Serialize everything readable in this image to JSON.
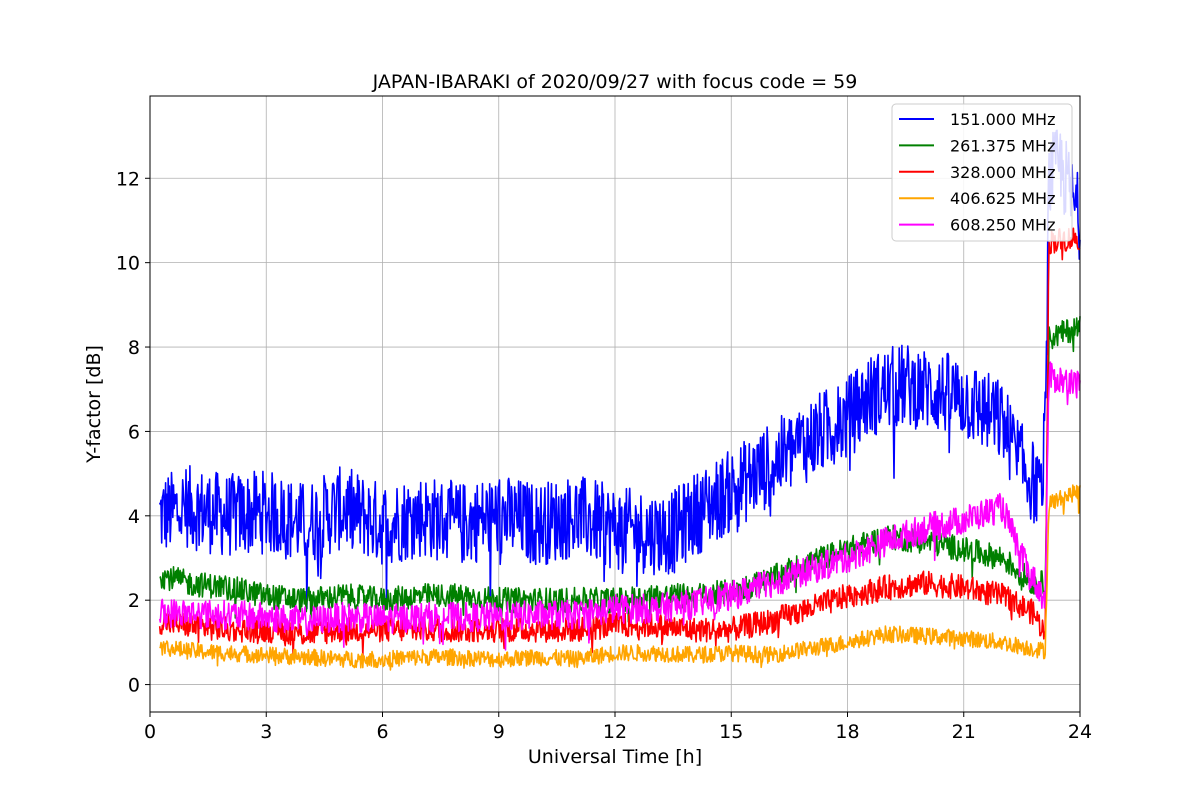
{
  "chart_data": {
    "type": "line",
    "title": "JAPAN-IBARAKI of 2020/09/27 with focus code = 59",
    "xlabel": "Universal Time [h]",
    "ylabel": "Y-factor [dB]",
    "xlim": [
      0,
      24
    ],
    "ylim": [
      -0.65,
      13.95
    ],
    "xticks": [
      0,
      3,
      6,
      9,
      12,
      15,
      18,
      21,
      24
    ],
    "yticks": [
      0,
      2,
      4,
      6,
      8,
      10,
      12
    ],
    "grid": true,
    "legend_position": "top-right",
    "series": [
      {
        "name": "151.000 MHz",
        "color": "#0000ff",
        "noise": 1.0,
        "x": [
          0.25,
          1,
          2,
          3,
          4,
          5,
          6,
          7,
          8,
          9,
          10,
          11,
          12,
          13,
          13.5,
          14,
          15,
          16,
          17,
          18,
          18.5,
          19,
          19.5,
          20,
          21,
          22,
          22.5,
          23,
          23.1,
          23.2,
          23.5,
          24
        ],
        "values": [
          4.0,
          4.2,
          4.0,
          4.1,
          3.8,
          4.2,
          3.8,
          4.0,
          3.8,
          4.0,
          3.8,
          4.0,
          3.7,
          3.6,
          3.6,
          4.0,
          4.6,
          5.2,
          5.8,
          6.3,
          6.8,
          7.0,
          7.1,
          7.0,
          6.8,
          6.2,
          5.2,
          4.5,
          6.0,
          12.0,
          12.3,
          11.0
        ]
      },
      {
        "name": "261.375 MHz",
        "color": "#008000",
        "noise": 0.3,
        "x": [
          0.25,
          1,
          2,
          3,
          4,
          5,
          6,
          7,
          8,
          9,
          10,
          11,
          12,
          13,
          14,
          15,
          16,
          17,
          18,
          19,
          20,
          21,
          22,
          22.8,
          23.1,
          23.2,
          24
        ],
        "values": [
          2.6,
          2.4,
          2.3,
          2.1,
          2.0,
          2.1,
          2.0,
          2.1,
          2.1,
          2.0,
          2.0,
          2.0,
          2.0,
          2.1,
          2.1,
          2.2,
          2.5,
          2.9,
          3.2,
          3.5,
          3.4,
          3.2,
          3.0,
          2.4,
          2.4,
          8.2,
          8.5
        ]
      },
      {
        "name": "328.000 MHz",
        "color": "#ff0000",
        "noise": 0.3,
        "x": [
          0.25,
          1,
          2,
          3,
          4,
          5,
          6,
          7,
          8,
          9,
          10,
          11,
          12,
          13,
          14,
          15,
          16,
          17,
          18,
          19,
          20,
          21,
          22,
          22.8,
          23.1,
          23.2,
          24
        ],
        "values": [
          1.5,
          1.4,
          1.3,
          1.3,
          1.2,
          1.3,
          1.3,
          1.3,
          1.3,
          1.3,
          1.3,
          1.3,
          1.4,
          1.4,
          1.3,
          1.3,
          1.5,
          1.8,
          2.1,
          2.3,
          2.4,
          2.3,
          2.1,
          1.7,
          1.2,
          10.5,
          10.6
        ]
      },
      {
        "name": "406.625 MHz",
        "color": "#ffa500",
        "noise": 0.2,
        "x": [
          0.25,
          1,
          2,
          3,
          4,
          5,
          6,
          7,
          8,
          9,
          10,
          11,
          12,
          13,
          14,
          15,
          16,
          17,
          18,
          19,
          20,
          21,
          22,
          22.8,
          23.1,
          23.2,
          24
        ],
        "values": [
          0.9,
          0.8,
          0.75,
          0.7,
          0.65,
          0.6,
          0.6,
          0.65,
          0.65,
          0.6,
          0.65,
          0.6,
          0.75,
          0.75,
          0.7,
          0.75,
          0.7,
          0.85,
          1.0,
          1.2,
          1.15,
          1.1,
          1.0,
          0.85,
          0.8,
          4.3,
          4.6
        ]
      },
      {
        "name": "608.250 MHz",
        "color": "#ff00ff",
        "noise": 0.35,
        "x": [
          0.25,
          1,
          2,
          3,
          4,
          5,
          6,
          7,
          8,
          9,
          10,
          11,
          12,
          13,
          14,
          15,
          16,
          17,
          18,
          19,
          20,
          21,
          22,
          22.5,
          23.1,
          23.2,
          24
        ],
        "values": [
          1.7,
          1.7,
          1.65,
          1.6,
          1.5,
          1.6,
          1.55,
          1.6,
          1.6,
          1.6,
          1.65,
          1.65,
          1.8,
          1.8,
          1.9,
          2.1,
          2.4,
          2.7,
          3.0,
          3.4,
          3.7,
          3.9,
          4.2,
          3.0,
          2.0,
          7.3,
          7.1
        ]
      }
    ]
  }
}
